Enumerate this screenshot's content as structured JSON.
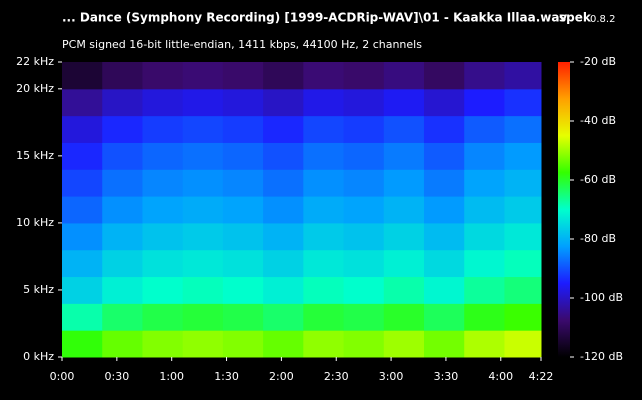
{
  "chart_data": {
    "type": "spectrogram",
    "title": "... Dance (Symphony Recording) [1999-ACDRip-WAV]\\01 - Kaakka Illaa.wav",
    "subtitle": "PCM signed 16-bit little-endian, 1411 kbps, 44100 Hz, 2 channels",
    "app_name": "spek",
    "app_version": "0.8.2",
    "xlim": [
      0,
      262
    ],
    "xticks": [
      {
        "value": 0,
        "label": "0:00"
      },
      {
        "value": 30,
        "label": "0:30"
      },
      {
        "value": 60,
        "label": "1:00"
      },
      {
        "value": 90,
        "label": "1:30"
      },
      {
        "value": 120,
        "label": "2:00"
      },
      {
        "value": 150,
        "label": "2:30"
      },
      {
        "value": 180,
        "label": "3:00"
      },
      {
        "value": 210,
        "label": "3:30"
      },
      {
        "value": 240,
        "label": "4:00"
      },
      {
        "value": 262,
        "label": "4:22"
      }
    ],
    "ylim": [
      0,
      22
    ],
    "yticks": [
      {
        "value": 0,
        "label": "0 kHz"
      },
      {
        "value": 5,
        "label": "5 kHz"
      },
      {
        "value": 10,
        "label": "10 kHz"
      },
      {
        "value": 15,
        "label": "15 kHz"
      },
      {
        "value": 20,
        "label": "20 kHz"
      },
      {
        "value": 22,
        "label": "22 kHz"
      }
    ],
    "zlim": [
      -120,
      -20
    ],
    "zticks": [
      {
        "value": -20,
        "label": "-20 dB"
      },
      {
        "value": -40,
        "label": "-40 dB"
      },
      {
        "value": -60,
        "label": "-60 dB"
      },
      {
        "value": -80,
        "label": "-80 dB"
      },
      {
        "value": -100,
        "label": "-100 dB"
      },
      {
        "value": -120,
        "label": "-120 dB"
      }
    ],
    "colorscale": [
      "#000000",
      "#3b0a6e",
      "#1c1cff",
      "#00a0ff",
      "#00ffcc",
      "#33ff00",
      "#e6ff00",
      "#ffa000",
      "#ff2000"
    ],
    "xbins": [
      0,
      22,
      44,
      66,
      88,
      110,
      132,
      154,
      176,
      198,
      220,
      242,
      262
    ],
    "ybins": [
      0,
      2,
      4,
      6,
      8,
      10,
      12,
      14,
      16,
      18,
      20,
      22
    ],
    "z": [
      [
        -58,
        -54,
        -52,
        -51,
        -52,
        -54,
        -51,
        -52,
        -50,
        -53,
        -49,
        -47
      ],
      [
        -68,
        -64,
        -62,
        -61,
        -62,
        -64,
        -61,
        -62,
        -60,
        -63,
        -59,
        -57
      ],
      [
        -76,
        -72,
        -70,
        -69,
        -70,
        -72,
        -69,
        -70,
        -68,
        -71,
        -67,
        -65
      ],
      [
        -80,
        -76,
        -74,
        -73,
        -74,
        -76,
        -73,
        -74,
        -72,
        -75,
        -71,
        -69
      ],
      [
        -84,
        -80,
        -78,
        -77,
        -78,
        -80,
        -77,
        -78,
        -76,
        -79,
        -75,
        -73
      ],
      [
        -88,
        -84,
        -82,
        -81,
        -82,
        -84,
        -81,
        -82,
        -80,
        -83,
        -79,
        -77
      ],
      [
        -91,
        -87,
        -85,
        -84,
        -85,
        -87,
        -84,
        -85,
        -83,
        -86,
        -82,
        -80
      ],
      [
        -94,
        -90,
        -88,
        -87,
        -88,
        -90,
        -87,
        -88,
        -86,
        -89,
        -85,
        -83
      ],
      [
        -98,
        -94,
        -92,
        -91,
        -92,
        -94,
        -91,
        -92,
        -90,
        -93,
        -89,
        -87
      ],
      [
        -104,
        -100,
        -98,
        -97,
        -98,
        -100,
        -97,
        -98,
        -96,
        -99,
        -95,
        -93
      ],
      [
        -114,
        -110,
        -108,
        -107,
        -108,
        -110,
        -107,
        -108,
        -106,
        -109,
        -105,
        -103
      ]
    ]
  }
}
